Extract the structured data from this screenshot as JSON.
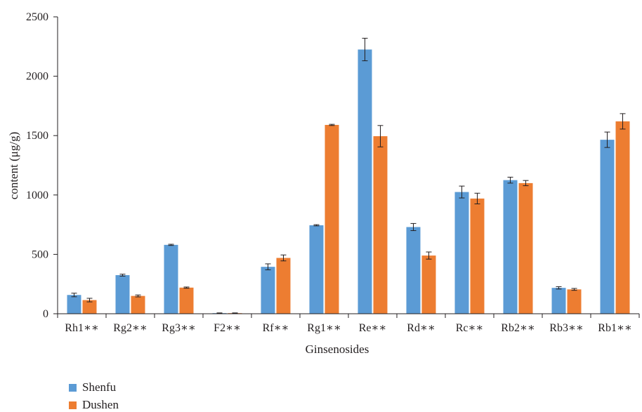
{
  "chart_data": {
    "type": "bar",
    "xlabel": "Ginsenosides",
    "ylabel": "content (μg/g)",
    "ylim": [
      0,
      2500
    ],
    "yticks": [
      0,
      500,
      1000,
      1500,
      2000,
      2500
    ],
    "grid": false,
    "legend_position": "bottom-left",
    "categories": [
      "Rh1∗∗",
      "Rg2∗∗",
      "Rg3∗∗",
      "F2∗∗",
      "Rf∗∗",
      "Rg1∗∗",
      "Re∗∗",
      "Rd∗∗",
      "Rc∗∗",
      "Rb2∗∗",
      "Rb3∗∗",
      "Rb1∗∗"
    ],
    "series": [
      {
        "name": "Shenfu",
        "color": "#5b9bd5",
        "values": [
          158,
          325,
          580,
          5,
          395,
          745,
          2225,
          730,
          1025,
          1125,
          218,
          1465
        ],
        "errors": [
          15,
          8,
          5,
          2,
          25,
          5,
          95,
          30,
          50,
          25,
          10,
          65
        ]
      },
      {
        "name": "Dushen",
        "color": "#ed7d31",
        "values": [
          115,
          150,
          220,
          5,
          470,
          1590,
          1495,
          490,
          970,
          1100,
          205,
          1620
        ],
        "errors": [
          15,
          8,
          5,
          2,
          25,
          5,
          90,
          30,
          45,
          22,
          8,
          65
        ]
      }
    ]
  }
}
